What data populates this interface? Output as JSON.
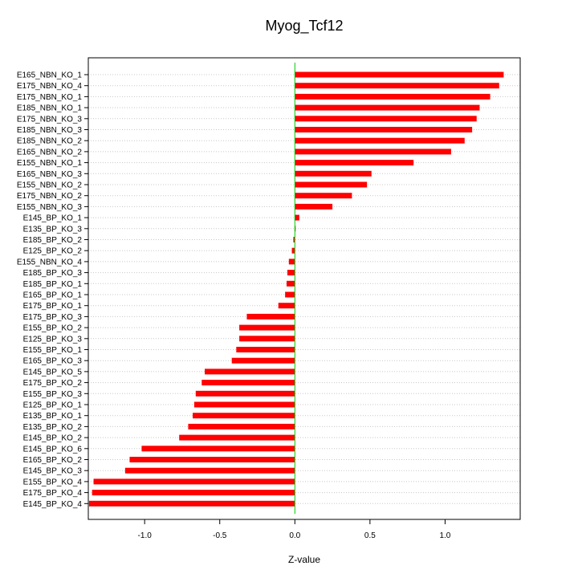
{
  "chart_data": {
    "type": "bar",
    "orientation": "horizontal",
    "title": "Myog_Tcf12",
    "xlabel": "Z-value",
    "ylabel": "",
    "xlim": [
      -1.375,
      1.5
    ],
    "xticks": [
      -1.0,
      -0.5,
      0.0,
      0.5,
      1.0
    ],
    "xtick_labels": [
      "-1.0",
      "-0.5",
      "0.0",
      "0.5",
      "1.0"
    ],
    "bar_color": "#ff0000",
    "zero_line_color": "#00cc00",
    "grid": "horizontal dotted",
    "categories": [
      "E165_NBN_KO_1",
      "E175_NBN_KO_4",
      "E175_NBN_KO_1",
      "E185_NBN_KO_1",
      "E175_NBN_KO_3",
      "E185_NBN_KO_3",
      "E185_NBN_KO_2",
      "E165_NBN_KO_2",
      "E155_NBN_KO_1",
      "E165_NBN_KO_3",
      "E155_NBN_KO_2",
      "E175_NBN_KO_2",
      "E155_NBN_KO_3",
      "E145_BP_KO_1",
      "E135_BP_KO_3",
      "E185_BP_KO_2",
      "E125_BP_KO_2",
      "E155_NBN_KO_4",
      "E185_BP_KO_3",
      "E185_BP_KO_1",
      "E165_BP_KO_1",
      "E175_BP_KO_1",
      "E175_BP_KO_3",
      "E155_BP_KO_2",
      "E125_BP_KO_3",
      "E155_BP_KO_1",
      "E165_BP_KO_3",
      "E145_BP_KO_5",
      "E175_BP_KO_2",
      "E155_BP_KO_3",
      "E125_BP_KO_1",
      "E135_BP_KO_1",
      "E135_BP_KO_2",
      "E145_BP_KO_2",
      "E145_BP_KO_6",
      "E165_BP_KO_2",
      "E145_BP_KO_3",
      "E155_BP_KO_4",
      "E175_BP_KO_4",
      "E145_BP_KO_4"
    ],
    "values": [
      1.39,
      1.36,
      1.3,
      1.23,
      1.21,
      1.18,
      1.13,
      1.04,
      0.79,
      0.51,
      0.48,
      0.38,
      0.25,
      0.03,
      0.005,
      -0.01,
      -0.02,
      -0.04,
      -0.05,
      -0.055,
      -0.065,
      -0.11,
      -0.32,
      -0.37,
      -0.37,
      -0.39,
      -0.42,
      -0.6,
      -0.62,
      -0.66,
      -0.67,
      -0.68,
      -0.71,
      -0.77,
      -1.02,
      -1.1,
      -1.13,
      -1.34,
      -1.35,
      -1.37
    ]
  }
}
